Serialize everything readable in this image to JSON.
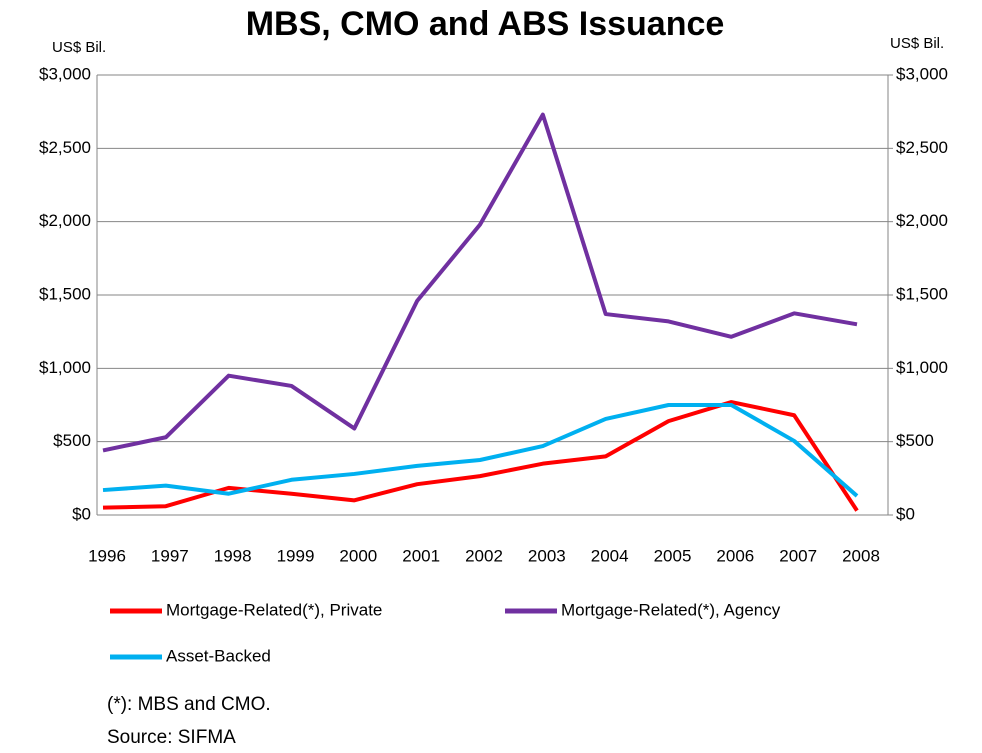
{
  "chart_data": {
    "type": "line",
    "title": "MBS, CMO and ABS Issuance",
    "y_label": "US$ Bil.",
    "y2_label": "US$ Bil.",
    "categories": [
      "1996",
      "1997",
      "1998",
      "1999",
      "2000",
      "2001",
      "2002",
      "2003",
      "2004",
      "2005",
      "2006",
      "2007",
      "2008"
    ],
    "series": [
      {
        "name": "Mortgage-Related(*), Private",
        "color": "#ff0000",
        "values": [
          50,
          60,
          185,
          145,
          100,
          210,
          265,
          350,
          400,
          640,
          770,
          680,
          30
        ]
      },
      {
        "name": "Mortgage-Related(*), Agency",
        "color": "#7030a0",
        "values": [
          440,
          530,
          950,
          880,
          590,
          1460,
          1980,
          2730,
          1370,
          1320,
          1215,
          1375,
          1300
        ]
      },
      {
        "name": "Asset-Backed",
        "color": "#00b0f0",
        "values": [
          170,
          200,
          145,
          240,
          280,
          335,
          375,
          470,
          655,
          750,
          750,
          505,
          130
        ]
      }
    ],
    "ylim": [
      0,
      3000
    ],
    "yticks": [
      {
        "value": 0,
        "label": "$0"
      },
      {
        "value": 500,
        "label": "$500"
      },
      {
        "value": 1000,
        "label": "$1,000"
      },
      {
        "value": 1500,
        "label": "$1,500"
      },
      {
        "value": 2000,
        "label": "$2,000"
      },
      {
        "value": 2500,
        "label": "$2,500"
      },
      {
        "value": 3000,
        "label": "$3,000"
      }
    ],
    "y2lim": [
      0,
      3000
    ],
    "y2ticks": [
      {
        "value": 0,
        "label": "$0"
      },
      {
        "value": 500,
        "label": "$500"
      },
      {
        "value": 1000,
        "label": "$1,000"
      },
      {
        "value": 1500,
        "label": "$1,500"
      },
      {
        "value": 2000,
        "label": "$2,000"
      },
      {
        "value": 2500,
        "label": "$2,500"
      },
      {
        "value": 3000,
        "label": "$3,000"
      }
    ],
    "grid": true,
    "legend": "bottom",
    "notes": [
      "(*): MBS and CMO.",
      "Source: SIFMA"
    ]
  }
}
